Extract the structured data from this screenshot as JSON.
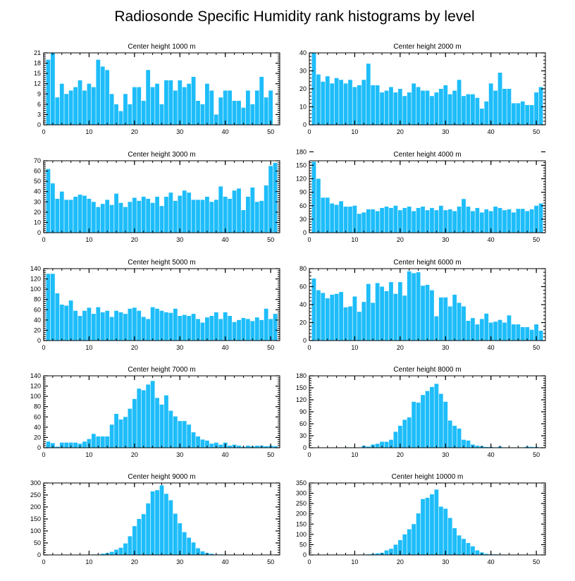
{
  "title": "Radiosonde Specific Humidity rank histograms by level",
  "bar_color": "#1ebdfa",
  "chart_data": [
    {
      "type": "bar",
      "title": "Center height 1000 m",
      "xlim": [
        0,
        52
      ],
      "ylim": [
        0,
        21
      ],
      "xticks": [
        0,
        10,
        20,
        30,
        40,
        50
      ],
      "yticks": [
        0,
        3,
        6,
        9,
        12,
        15,
        18,
        21
      ],
      "values": [
        19,
        21,
        8,
        12,
        9,
        10,
        11,
        13,
        10,
        12,
        11,
        19,
        17,
        16,
        9,
        6,
        4,
        9,
        6,
        11,
        11,
        7,
        16,
        11,
        12,
        6,
        13,
        13,
        10,
        13,
        11,
        12,
        14,
        7,
        6,
        12,
        10,
        3,
        8,
        10,
        10,
        7,
        7,
        5,
        10,
        6,
        10,
        14,
        8,
        10
      ]
    },
    {
      "type": "bar",
      "title": "Center height 2000 m",
      "xlim": [
        0,
        52
      ],
      "ylim": [
        0,
        40
      ],
      "xticks": [
        0,
        10,
        20,
        30,
        40,
        50
      ],
      "yticks": [
        0,
        10,
        20,
        30,
        40
      ],
      "values": [
        40,
        28,
        24,
        27,
        23,
        26,
        25,
        23,
        25,
        21,
        22,
        25,
        34,
        22,
        22,
        18,
        19,
        21,
        18,
        20,
        16,
        18,
        23,
        21,
        19,
        19,
        16,
        18,
        20,
        22,
        17,
        19,
        25,
        16,
        17,
        17,
        15,
        9,
        13,
        23,
        19,
        29,
        20,
        20,
        12,
        12,
        13,
        11,
        11,
        18,
        21
      ]
    },
    {
      "type": "bar",
      "title": "Center height 3000 m",
      "xlim": [
        0,
        52
      ],
      "ylim": [
        0,
        70
      ],
      "xticks": [
        0,
        10,
        20,
        30,
        40,
        50
      ],
      "yticks": [
        0,
        10,
        20,
        30,
        40,
        50,
        60,
        70
      ],
      "values": [
        62,
        48,
        33,
        40,
        32,
        32,
        35,
        37,
        36,
        33,
        30,
        25,
        28,
        32,
        27,
        38,
        29,
        25,
        30,
        34,
        31,
        35,
        33,
        29,
        35,
        26,
        35,
        39,
        31,
        36,
        41,
        39,
        32,
        32,
        32,
        35,
        30,
        32,
        45,
        35,
        33,
        41,
        43,
        22,
        35,
        44,
        30,
        31,
        46,
        65,
        68
      ]
    },
    {
      "type": "bar",
      "title": "Center height 4000 m",
      "xlim": [
        0,
        52
      ],
      "ylim": [
        0,
        160
      ],
      "xticks": [
        0,
        10,
        20,
        30,
        40,
        50
      ],
      "yticks": [
        0,
        30,
        60,
        90,
        120,
        150,
        180
      ],
      "values": [
        158,
        120,
        78,
        78,
        65,
        62,
        70,
        58,
        58,
        60,
        42,
        45,
        52,
        52,
        48,
        55,
        58,
        55,
        60,
        50,
        55,
        58,
        48,
        55,
        58,
        50,
        55,
        50,
        60,
        50,
        52,
        48,
        58,
        75,
        58,
        48,
        55,
        45,
        52,
        48,
        58,
        55,
        50,
        52,
        45,
        53,
        53,
        48,
        52,
        60,
        65
      ]
    },
    {
      "type": "bar",
      "title": "Center height 5000 m",
      "xlim": [
        0,
        52
      ],
      "ylim": [
        0,
        140
      ],
      "xticks": [
        0,
        10,
        20,
        30,
        40,
        50
      ],
      "yticks": [
        0,
        20,
        40,
        60,
        80,
        100,
        120,
        140
      ],
      "values": [
        130,
        130,
        92,
        70,
        68,
        78,
        58,
        48,
        58,
        64,
        52,
        65,
        55,
        58,
        46,
        58,
        55,
        52,
        62,
        64,
        58,
        46,
        42,
        65,
        62,
        58,
        55,
        54,
        62,
        48,
        50,
        48,
        52,
        42,
        35,
        45,
        48,
        55,
        42,
        55,
        48,
        36,
        40,
        44,
        42,
        38,
        45,
        40,
        62,
        42,
        52
      ]
    },
    {
      "type": "bar",
      "title": "Center height 6000 m",
      "xlim": [
        0,
        52
      ],
      "ylim": [
        0,
        80
      ],
      "xticks": [
        0,
        10,
        20,
        30,
        40,
        50
      ],
      "yticks": [
        0,
        20,
        40,
        60,
        80
      ],
      "values": [
        69,
        56,
        53,
        47,
        51,
        52,
        54,
        37,
        38,
        49,
        32,
        43,
        63,
        42,
        64,
        60,
        55,
        65,
        52,
        65,
        50,
        77,
        75,
        76,
        61,
        62,
        56,
        27,
        48,
        48,
        38,
        51,
        42,
        38,
        22,
        25,
        18,
        24,
        30,
        20,
        21,
        23,
        20,
        28,
        18,
        18,
        15,
        15,
        12,
        18,
        11
      ]
    },
    {
      "type": "bar",
      "title": "Center height 7000 m",
      "xlim": [
        0,
        52
      ],
      "ylim": [
        0,
        140
      ],
      "xticks": [
        0,
        10,
        20,
        30,
        40,
        50
      ],
      "yticks": [
        0,
        20,
        40,
        60,
        80,
        100,
        120,
        140
      ],
      "values": [
        12,
        9,
        2,
        10,
        10,
        10,
        10,
        8,
        12,
        17,
        27,
        22,
        22,
        22,
        45,
        66,
        55,
        60,
        76,
        95,
        115,
        112,
        123,
        130,
        97,
        84,
        102,
        72,
        61,
        52,
        52,
        45,
        30,
        22,
        16,
        14,
        8,
        10,
        6,
        10,
        4,
        6,
        4,
        2,
        4,
        3,
        4,
        4,
        3,
        4,
        3
      ]
    },
    {
      "type": "bar",
      "title": "Center height 8000 m",
      "xlim": [
        0,
        52
      ],
      "ylim": [
        0,
        180
      ],
      "xticks": [
        0,
        10,
        20,
        30,
        40,
        50
      ],
      "yticks": [
        0,
        30,
        60,
        90,
        120,
        150,
        180
      ],
      "values": [
        0,
        0,
        0,
        0,
        0,
        0,
        0,
        1,
        1,
        1,
        1,
        5,
        3,
        8,
        10,
        15,
        15,
        20,
        40,
        55,
        70,
        76,
        115,
        113,
        132,
        142,
        152,
        160,
        135,
        115,
        68,
        55,
        48,
        20,
        18,
        8,
        5,
        4,
        2,
        2,
        1,
        3,
        1,
        1,
        1,
        1,
        1,
        3,
        2,
        2,
        1
      ]
    },
    {
      "type": "bar",
      "title": "Center height 9000 m",
      "xlim": [
        0,
        52
      ],
      "ylim": [
        0,
        300
      ],
      "xticks": [
        0,
        10,
        20,
        30,
        40,
        50
      ],
      "yticks": [
        0,
        50,
        100,
        150,
        200,
        250,
        300
      ],
      "values": [
        0,
        0,
        0,
        0,
        0,
        1,
        1,
        1,
        1,
        1,
        2,
        2,
        5,
        8,
        13,
        22,
        30,
        48,
        78,
        120,
        150,
        170,
        215,
        265,
        270,
        290,
        255,
        228,
        172,
        132,
        95,
        72,
        52,
        28,
        15,
        8,
        5,
        2,
        2,
        1,
        1,
        0,
        0,
        0,
        0,
        0,
        0,
        0,
        0,
        0,
        0
      ]
    },
    {
      "type": "bar",
      "title": "Center height 10000 m",
      "xlim": [
        0,
        52
      ],
      "ylim": [
        0,
        350
      ],
      "xticks": [
        0,
        10,
        20,
        30,
        40,
        50
      ],
      "yticks": [
        0,
        50,
        100,
        150,
        200,
        250,
        300,
        350
      ],
      "values": [
        0,
        0,
        0,
        0,
        0,
        0,
        0,
        0,
        1,
        1,
        1,
        2,
        3,
        5,
        8,
        10,
        22,
        30,
        50,
        72,
        100,
        125,
        150,
        202,
        272,
        278,
        295,
        318,
        235,
        225,
        180,
        130,
        95,
        78,
        58,
        42,
        22,
        12,
        5,
        3,
        3,
        2,
        2,
        1,
        0,
        0,
        0,
        0,
        0,
        0,
        0
      ]
    }
  ]
}
